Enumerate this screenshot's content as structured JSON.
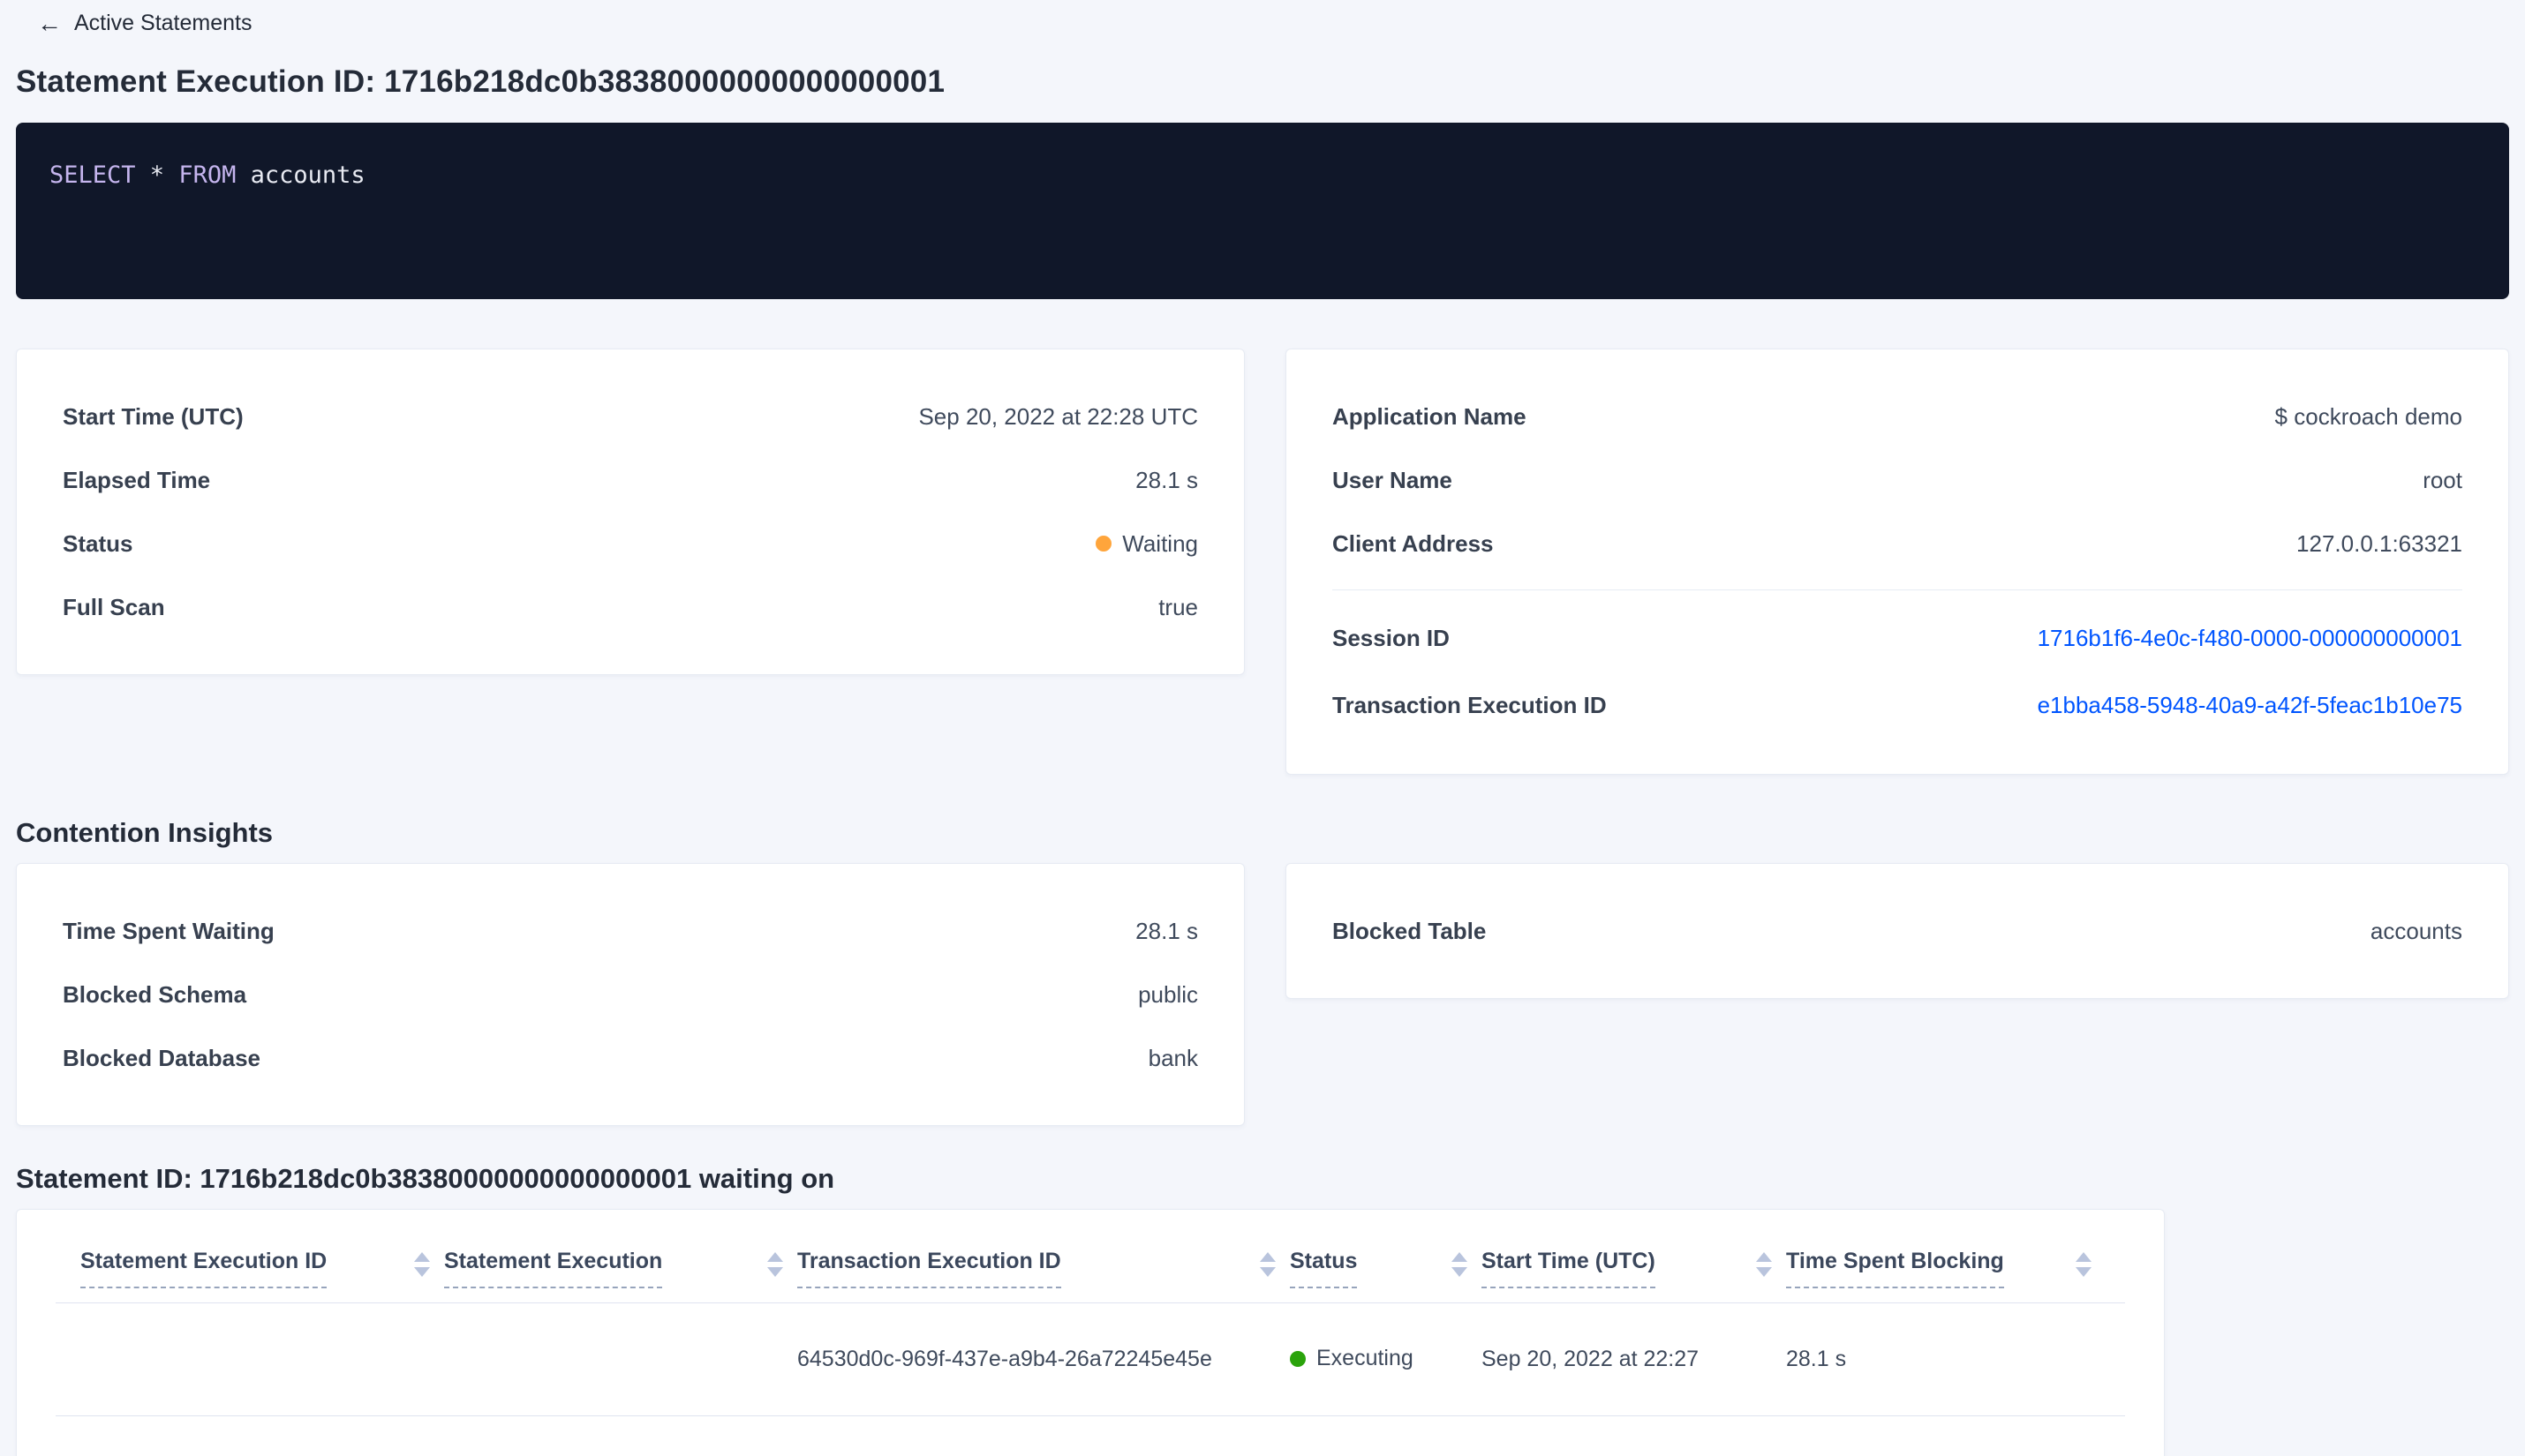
{
  "colors": {
    "link": "#0055ff",
    "status_waiting": "#ffa53b",
    "status_executing": "#2aa30b",
    "sorter": "#b9c4dd",
    "sql_bg": "#101729",
    "sql_keyword": "#c5b5ee",
    "sql_text": "#e8eaf2"
  },
  "header": {
    "back_label": "Active Statements",
    "back_icon": "arrow-left",
    "title": "Statement Execution ID: 1716b218dc0b38380000000000000001"
  },
  "sql": {
    "kw1": "SELECT",
    "plain1": " * ",
    "kw2": "FROM",
    "plain2": " accounts"
  },
  "execution_card": {
    "rows": [
      {
        "label": "Start Time (UTC)",
        "value": "Sep 20, 2022 at 22:28 UTC"
      },
      {
        "label": "Elapsed Time",
        "value": "28.1 s"
      },
      {
        "label": "Status",
        "value": "Waiting"
      },
      {
        "label": "Full Scan",
        "value": "true"
      }
    ]
  },
  "session_card": {
    "rows_top": [
      {
        "label": "Application Name",
        "value": "$ cockroach demo"
      },
      {
        "label": "User Name",
        "value": "root"
      },
      {
        "label": "Client Address",
        "value": "127.0.0.1:63321"
      }
    ],
    "rows_links": [
      {
        "label": "Session ID",
        "value": "1716b1f6-4e0c-f480-0000-000000000001"
      },
      {
        "label": "Transaction Execution ID",
        "value": "e1bba458-5948-40a9-a42f-5feac1b10e75"
      }
    ]
  },
  "contention": {
    "heading": "Contention Insights",
    "left_rows": [
      {
        "label": "Time Spent Waiting",
        "value": "28.1 s"
      },
      {
        "label": "Blocked Schema",
        "value": "public"
      },
      {
        "label": "Blocked Database",
        "value": "bank"
      }
    ],
    "right_rows": [
      {
        "label": "Blocked Table",
        "value": "accounts"
      }
    ]
  },
  "waiting_table": {
    "heading": "Statement ID: 1716b218dc0b38380000000000000001 waiting on",
    "columns": [
      {
        "label": "Statement Execution ID"
      },
      {
        "label": "Statement Execution"
      },
      {
        "label": "Transaction Execution ID"
      },
      {
        "label": "Status"
      },
      {
        "label": "Start Time (UTC)"
      },
      {
        "label": "Time Spent Blocking"
      }
    ],
    "row": {
      "statement_execution_id": "",
      "statement_execution": "",
      "transaction_execution_id": "64530d0c-969f-437e-a9b4-26a72245e45e",
      "status": "Executing",
      "start_time": "Sep 20, 2022 at 22:27",
      "time_spent_blocking": "28.1 s"
    }
  }
}
